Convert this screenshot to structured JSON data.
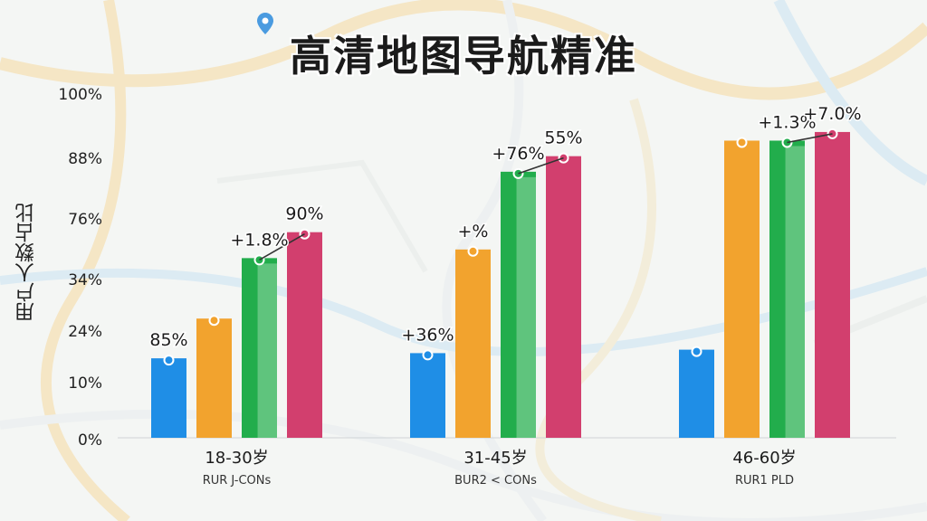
{
  "chart_data": {
    "type": "bar",
    "title": "高清地图导航精准",
    "ylabel": "用户人数占比",
    "y_ticks": [
      "0%",
      "10%",
      "24%",
      "34%",
      "76%",
      "88%",
      "100%"
    ],
    "categories": [
      "18-30岁",
      "31-45岁",
      "46-60岁"
    ],
    "category_sublabels": [
      "RUR J-CONs",
      "BUR2 < CONs",
      "RUR1 PLD"
    ],
    "series": [
      {
        "color": "#1f8ee6",
        "values": [
          23,
          24.5,
          25.5
        ]
      },
      {
        "color": "#f2a32e",
        "values": [
          34.5,
          54.5,
          86
        ]
      },
      {
        "color": "#22ad4c",
        "values": [
          52,
          77,
          86
        ]
      },
      {
        "color": "#d23f6e",
        "values": [
          59.5,
          81.5,
          88.5
        ]
      }
    ],
    "annotations": [
      {
        "group": 0,
        "series": 0,
        "text": "85%"
      },
      {
        "group": 0,
        "series": 2,
        "text": "+1.8%"
      },
      {
        "group": 0,
        "series": 3,
        "text": "90%"
      },
      {
        "group": 1,
        "series": 0,
        "text": "+36%"
      },
      {
        "group": 1,
        "series": 1,
        "text": "+%"
      },
      {
        "group": 1,
        "series": 2,
        "text": "+76%"
      },
      {
        "group": 1,
        "series": 3,
        "text": "55%"
      },
      {
        "group": 2,
        "series": 2,
        "text": "+1.3%"
      },
      {
        "group": 2,
        "series": 3,
        "text": "+7.0%"
      }
    ],
    "legend": "none",
    "grid": false
  }
}
